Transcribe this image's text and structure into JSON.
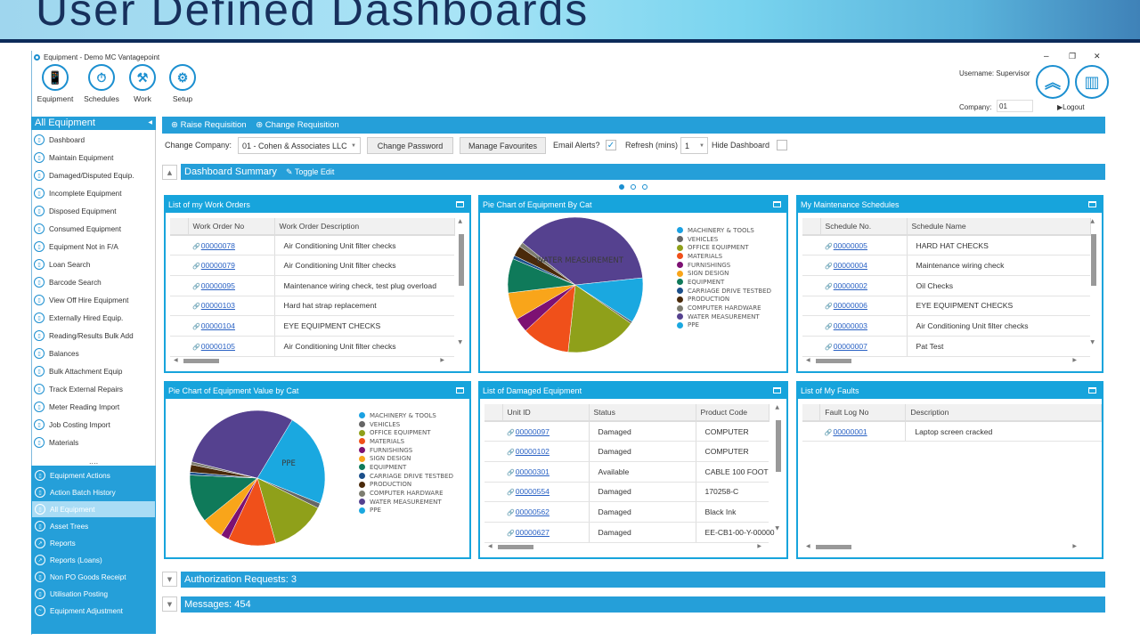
{
  "banner": {
    "title": "User Defined Dashboards"
  },
  "window": {
    "title": "Equipment - Demo MC Vantagepoint",
    "minimize": "–",
    "restore": "❐",
    "close": "✕"
  },
  "toolbar": [
    {
      "label": "Equipment",
      "icon": "📱"
    },
    {
      "label": "Schedules",
      "icon": "⏱"
    },
    {
      "label": "Work",
      "icon": "⚒"
    },
    {
      "label": "Setup",
      "icon": "⚙"
    }
  ],
  "user": {
    "username": "Username: Supervisor",
    "company_label": "Company:",
    "company_value": "01",
    "logout": "Logout",
    "home_icon": "︽",
    "dashboard_icon": "▥"
  },
  "sidebar": {
    "header": "All Equipment",
    "items": [
      "Dashboard",
      "Maintain Equipment",
      "Damaged/Disputed Equip.",
      "Incomplete Equipment",
      "Disposed Equipment",
      "Consumed Equipment",
      "Equipment Not in F/A",
      "Loan Search",
      "Barcode Search",
      "View Off Hire Equipment",
      "Externally Hired Equip.",
      "Reading/Results Bulk Add",
      "Balances",
      "Bulk Attachment Equip",
      "Track External Repairs",
      "Meter Reading Import",
      "Job Costing Import",
      "Materials"
    ],
    "more": "....",
    "sections": [
      {
        "label": "Equipment Actions",
        "selected": false
      },
      {
        "label": "Action Batch History",
        "selected": false
      },
      {
        "label": "All Equipment",
        "selected": true
      },
      {
        "label": "Asset Trees",
        "selected": false
      },
      {
        "label": "Reports",
        "selected": false
      },
      {
        "label": "Reports (Loans)",
        "selected": false
      },
      {
        "label": "Non PO Goods Receipt",
        "selected": false
      },
      {
        "label": "Utilisation Posting",
        "selected": false
      },
      {
        "label": "Equipment Adjustment",
        "selected": false
      }
    ]
  },
  "actions": {
    "raise": "Raise Requisition",
    "change": "Change Requisition"
  },
  "controls": {
    "change_company_label": "Change Company:",
    "company": "01 - Cohen & Associates LLC",
    "change_password": "Change Password",
    "manage_favourites": "Manage Favourites",
    "email_alerts_label": "Email Alerts?",
    "email_alerts": true,
    "refresh_label": "Refresh (mins)",
    "refresh_value": "1",
    "hide_dashboard_label": "Hide Dashboard",
    "hide_dashboard": false
  },
  "dashboard": {
    "title": "Dashboard Summary",
    "toggle_edit": "Toggle Edit",
    "page": 1,
    "pages": 3
  },
  "work_orders": {
    "title": "List of my Work Orders",
    "columns": [
      "Work Order No",
      "Work Order Description"
    ],
    "rows": [
      [
        "00000078",
        "Air Conditioning Unit filter checks"
      ],
      [
        "00000079",
        "Air Conditioning Unit filter checks"
      ],
      [
        "00000095",
        "Maintenance wiring check, test plug overload"
      ],
      [
        "00000103",
        "Hard hat strap replacement"
      ],
      [
        "00000104",
        "EYE EQUIPMENT CHECKS"
      ],
      [
        "00000105",
        "Air Conditioning Unit filter checks"
      ]
    ]
  },
  "schedules": {
    "title": "My Maintenance Schedules",
    "columns": [
      "Schedule No.",
      "Schedule Name"
    ],
    "rows": [
      [
        "00000005",
        "HARD HAT CHECKS"
      ],
      [
        "00000004",
        "Maintenance wiring check"
      ],
      [
        "00000002",
        "Oil Checks"
      ],
      [
        "00000006",
        "EYE EQUIPMENT CHECKS"
      ],
      [
        "00000003",
        "Air Conditioning Unit filter checks"
      ],
      [
        "00000007",
        "Pat Test"
      ]
    ]
  },
  "damaged": {
    "title": "List of Damaged Equipment",
    "columns": [
      "Unit ID",
      "Status",
      "Product Code"
    ],
    "rows": [
      [
        "00000097",
        "Damaged",
        "COMPUTER"
      ],
      [
        "00000102",
        "Damaged",
        "COMPUTER"
      ],
      [
        "00000301",
        "Available",
        "CABLE 100 FOOT"
      ],
      [
        "00000554",
        "Damaged",
        "170258-C"
      ],
      [
        "00000562",
        "Damaged",
        "Black Ink"
      ],
      [
        "00000627",
        "Damaged",
        "EE-CB1-00-Y-00000"
      ]
    ]
  },
  "faults": {
    "title": "List of My Faults",
    "columns": [
      "Fault Log No",
      "Description"
    ],
    "rows": [
      [
        "00000001",
        "Laptop screen cracked"
      ]
    ]
  },
  "chart_data": [
    {
      "type": "pie",
      "title": "Pie Chart of Equipment By Cat",
      "slice_label": "WATER MEASUREMENT",
      "legend": "right",
      "categories": [
        "MACHINERY & TOOLS",
        "VEHICLES",
        "OFFICE EQUIPMENT",
        "MATERIALS",
        "FURNISHINGS",
        "SIGN DESIGN",
        "EQUIPMENT",
        "CARRIAGE DRIVE TESTBED",
        "PRODUCTION",
        "COMPUTER HARDWARE",
        "WATER MEASUREMENT",
        "PPE"
      ],
      "values": [
        0,
        0.5,
        17,
        11.4,
        3.4,
        6.5,
        8.2,
        0.8,
        2.5,
        1.1,
        37.5,
        10.8
      ],
      "colors": [
        "#1ba1e2",
        "#666666",
        "#8fa01a",
        "#f0501a",
        "#7d1173",
        "#f9a51a",
        "#0f7a5a",
        "#1b4f8a",
        "#4a2a0a",
        "#7d7d70",
        "#55418f",
        "#1aa8e0"
      ]
    },
    {
      "type": "pie",
      "title": "Pie Chart of Equipment Value by Cat",
      "slice_label": "PPE",
      "legend": "right",
      "categories": [
        "MACHINERY & TOOLS",
        "VEHICLES",
        "OFFICE EQUIPMENT",
        "MATERIALS",
        "FURNISHINGS",
        "SIGN DESIGN",
        "EQUIPMENT",
        "CARRIAGE DRIVE TESTBED",
        "PRODUCTION",
        "COMPUTER HARDWARE",
        "WATER MEASUREMENT",
        "PPE"
      ],
      "values": [
        0,
        1.2,
        13.3,
        11.4,
        2,
        5.2,
        11.5,
        0.7,
        1.8,
        0.7,
        29.7,
        22.5
      ],
      "colors": [
        "#1ba1e2",
        "#666666",
        "#8fa01a",
        "#f0501a",
        "#7d1173",
        "#f9a51a",
        "#0f7a5a",
        "#1b4f8a",
        "#4a2a0a",
        "#7d7d70",
        "#55418f",
        "#1aa8e0"
      ]
    }
  ],
  "bottom": {
    "auth": "Authorization Requests: 3",
    "messages": "Messages: 454"
  }
}
